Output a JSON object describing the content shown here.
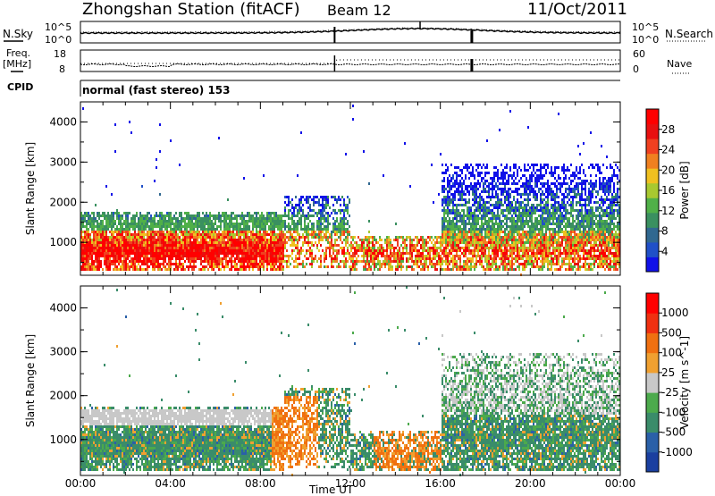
{
  "header": {
    "title": "Zhongshan Station (fitACF)",
    "beam": "Beam 12",
    "date": "11/Oct/2011"
  },
  "status_panels": {
    "nsky_label": "N.Sky",
    "nsky_ticks": [
      "10^5",
      "10^0"
    ],
    "nsearch_label": "N.Search",
    "nsearch_ticks": [
      "10^5",
      "10^0"
    ],
    "freq_label": "Freq.",
    "freq_unit": "[MHz]",
    "freq_ticks": [
      "18",
      "8"
    ],
    "nave_label": "Nave",
    "nave_ticks": [
      "60",
      "0"
    ],
    "cpid_label": "CPID",
    "cpid_text": "normal (fast stereo) 153"
  },
  "chart_data": [
    {
      "type": "heatmap",
      "name": "power",
      "ylabel": "Slant Range [km]",
      "yticks": [
        "4000",
        "3000",
        "2000",
        "1000"
      ],
      "ylim": [
        180,
        4500
      ],
      "xlim": [
        0,
        24
      ],
      "colorbar_label": "Power [dB]",
      "colorbar_ticks": [
        "28",
        "24",
        "20",
        "16",
        "12",
        "8",
        "4"
      ],
      "colorbar_colors": [
        "#1010e8",
        "#2050c8",
        "#306890",
        "#3a9060",
        "#50b048",
        "#a8c830",
        "#f0c020",
        "#f08020",
        "#f04020",
        "#e81010",
        "#ff0000"
      ]
    },
    {
      "type": "heatmap",
      "name": "velocity",
      "ylabel": "Slant Range [km]",
      "yticks": [
        "4000",
        "3000",
        "2000",
        "1000"
      ],
      "ylim": [
        180,
        4500
      ],
      "xlim": [
        0,
        24
      ],
      "colorbar_label": "Velocity [m s^-1]",
      "colorbar_ticks": [
        "1000",
        "500",
        "100",
        "25",
        "-25",
        "-100",
        "-500",
        "-1000"
      ],
      "colorbar_colors": [
        "#1a3fa0",
        "#2a60a8",
        "#3a8c6a",
        "#4caa4c",
        "#c8c8c8",
        "#f0a030",
        "#f07010",
        "#f03010",
        "#ff0000"
      ]
    }
  ],
  "x_axis": {
    "ticks": [
      "00:00",
      "04:00",
      "08:00",
      "12:00",
      "16:00",
      "20:00",
      "00:00"
    ],
    "label": "Time UT"
  }
}
